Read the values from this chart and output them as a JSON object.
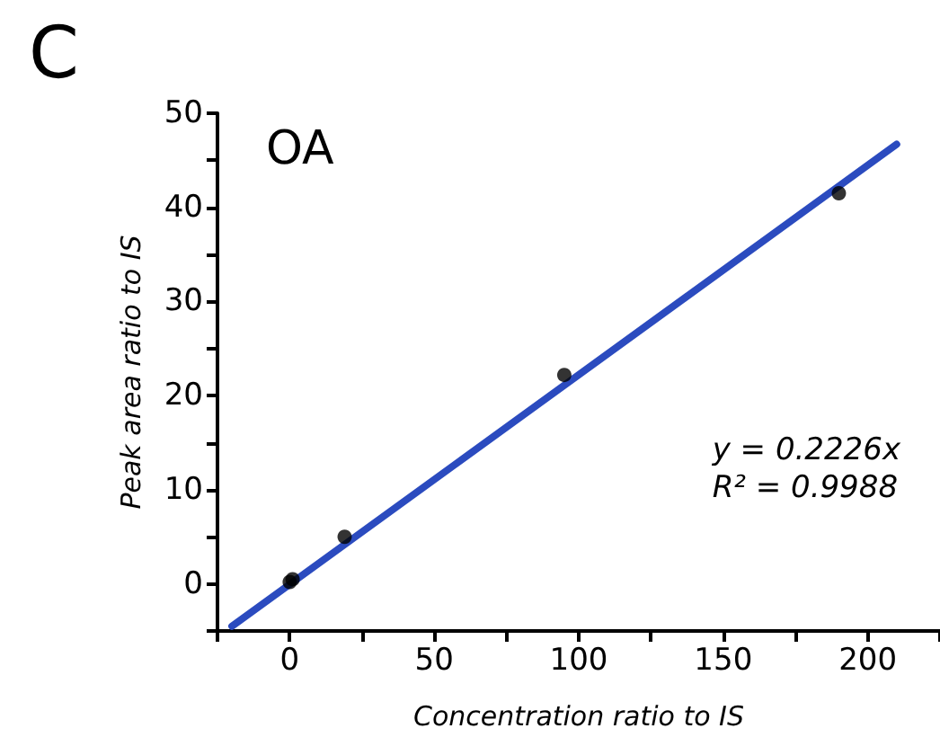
{
  "chart_data": {
    "type": "scatter",
    "xlabel": "Concentration ratio to IS",
    "ylabel": "Peak area ratio to IS",
    "annotations": [
      "C",
      "OA",
      "y = 0.2226x",
      "R² = 0.9988"
    ],
    "x": [
      0,
      1,
      19,
      95,
      190
    ],
    "series": [
      {
        "color": "#000000",
        "marker": "circle",
        "values": [
          0.2,
          0.5,
          5.0,
          22.2,
          41.5
        ]
      },
      {
        "type": "line",
        "color": "#2b4bbf",
        "x": [
          -20,
          210
        ],
        "values": [
          -4.5,
          46.7
        ]
      }
    ],
    "xlim": [
      -25,
      225
    ],
    "xticks": [
      {
        "value": -25,
        "label": null
      },
      0,
      {
        "value": 25,
        "label": null
      },
      50,
      {
        "value": 75,
        "label": null
      },
      100,
      {
        "value": 125,
        "label": null
      },
      150,
      {
        "value": 175,
        "label": null
      },
      200,
      {
        "value": 225,
        "label": null
      }
    ],
    "ylim": [
      -5,
      50
    ],
    "yticks": [
      {
        "value": -5,
        "label": null
      },
      0,
      {
        "value": 5,
        "label": null
      },
      10,
      {
        "value": 15,
        "label": null
      },
      20,
      {
        "value": 25,
        "label": null
      },
      30,
      {
        "value": 35,
        "label": null
      },
      40,
      {
        "value": 45,
        "label": null
      },
      50
    ],
    "grid": false,
    "line_style": "solid"
  }
}
